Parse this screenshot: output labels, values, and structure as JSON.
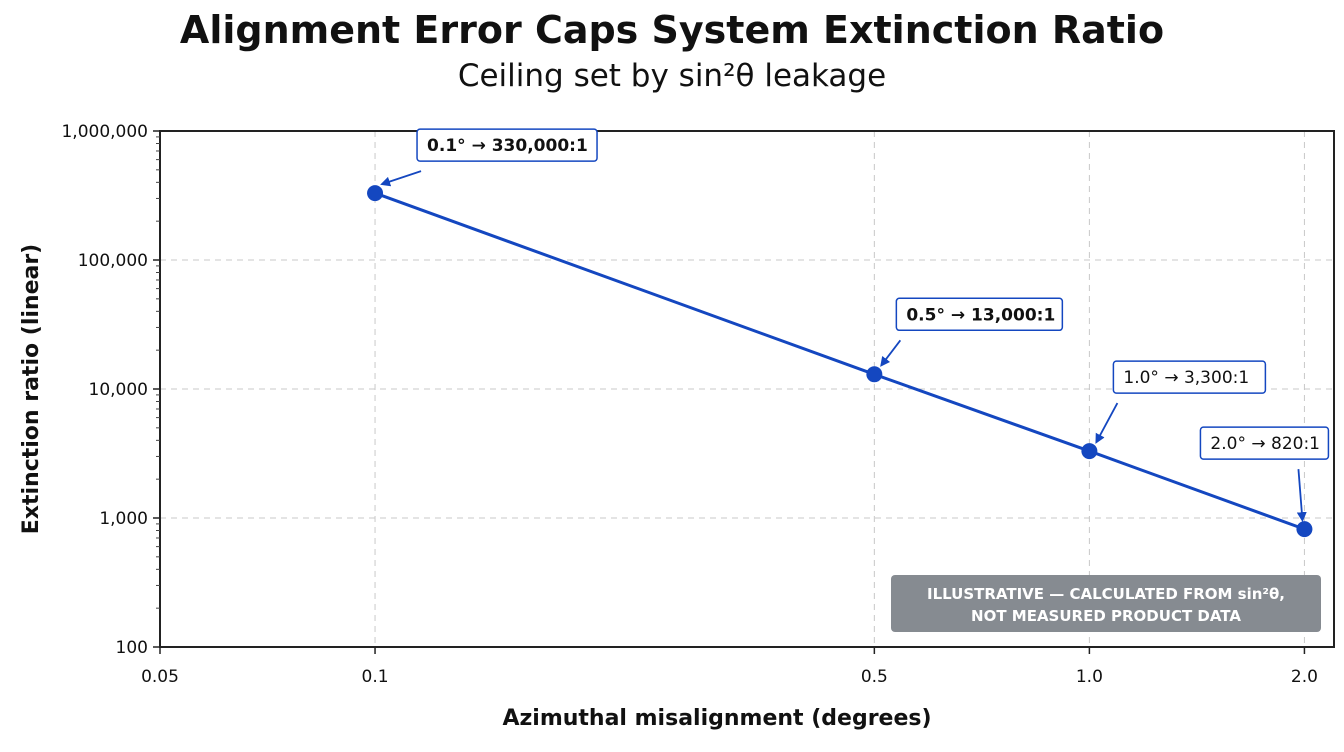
{
  "chart_data": {
    "type": "line",
    "title": "Alignment Error Caps System Extinction Ratio",
    "subtitle": "Ceiling set by sin²θ leakage",
    "xlabel": "Azimuthal misalignment (degrees)",
    "ylabel": "Extinction ratio (linear)",
    "x_scale": "log",
    "y_scale": "log",
    "xlim": [
      0.05,
      2.2
    ],
    "ylim": [
      100,
      1000000
    ],
    "x_ticks": [
      0.05,
      0.1,
      0.5,
      1.0,
      2.0
    ],
    "x_tick_labels": [
      "0.05",
      "0.1",
      "0.5",
      "1.0",
      "2.0"
    ],
    "y_ticks": [
      100,
      1000,
      10000,
      100000,
      1000000
    ],
    "y_tick_labels": [
      "100",
      "1,000",
      "10,000",
      "100,000",
      "1,000,000"
    ],
    "grid": true,
    "series": [
      {
        "color": "#1447c0",
        "x": [
          0.1,
          0.5,
          1.0,
          2.0
        ],
        "y": [
          330000,
          13000,
          3300,
          820
        ]
      }
    ],
    "annotations": [
      {
        "text": "0.1° → 330,000:1",
        "bold": true
      },
      {
        "text": "0.5° → 13,000:1",
        "bold": true
      },
      {
        "text": "1.0° → 3,300:1",
        "bold": false
      },
      {
        "text": "2.0° → 820:1",
        "bold": false
      }
    ],
    "note": {
      "lines": [
        "ILLUSTRATIVE — CALCULATED FROM sin²θ,",
        "NOT MEASURED PRODUCT DATA"
      ],
      "placement": "bottom-right",
      "background": "#868b91"
    }
  }
}
